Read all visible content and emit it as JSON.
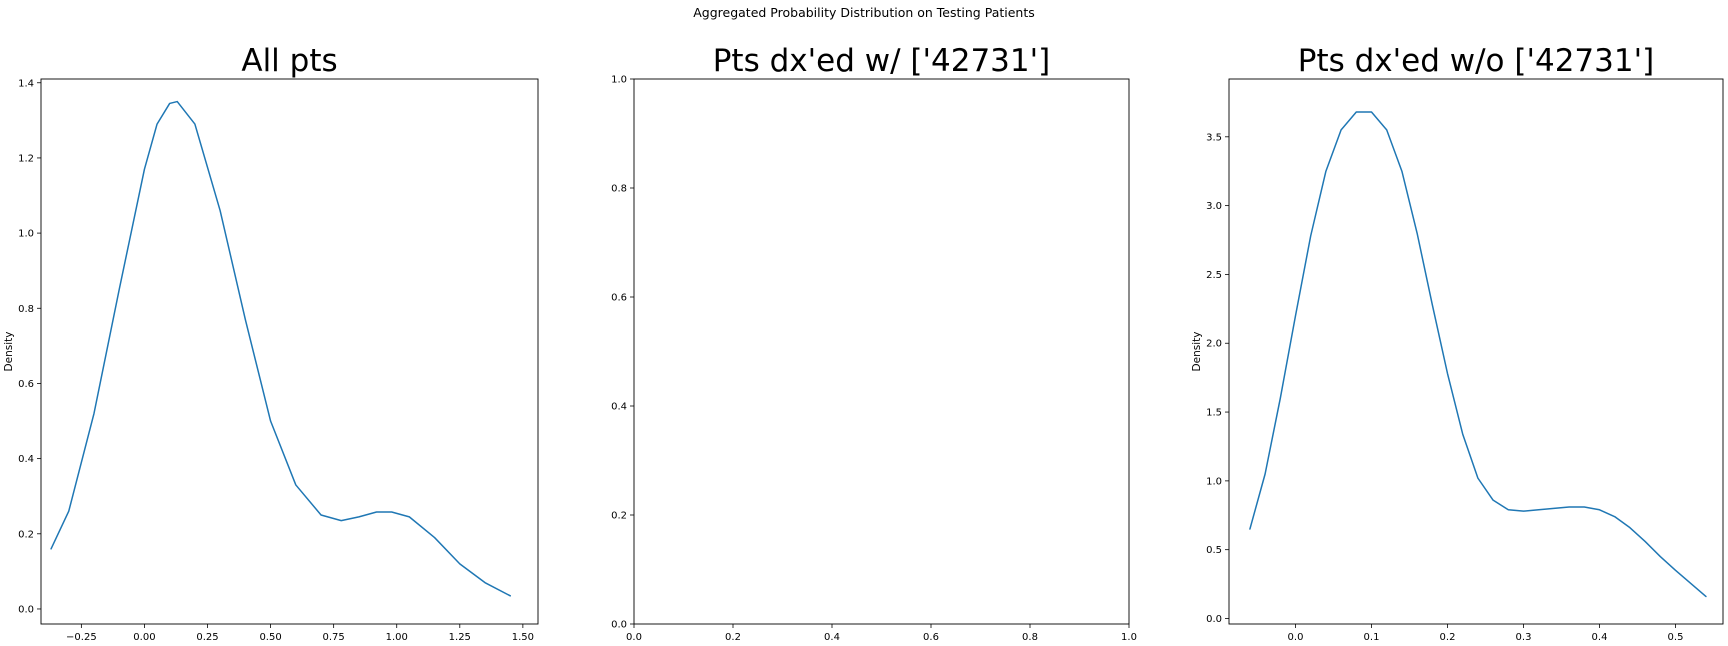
{
  "figure": {
    "suptitle": "Aggregated Probability Distribution on Testing Patients"
  },
  "chart_data": [
    {
      "type": "line",
      "title": "All pts",
      "xlabel": "",
      "ylabel": "Density",
      "xlim": [
        -0.41,
        1.56
      ],
      "ylim": [
        -0.04,
        1.41
      ],
      "xticks": [
        -0.25,
        0.0,
        0.25,
        0.5,
        0.75,
        1.0,
        1.25,
        1.5
      ],
      "xtick_labels": [
        "−0.25",
        "0.00",
        "0.25",
        "0.50",
        "0.75",
        "1.00",
        "1.25",
        "1.50"
      ],
      "yticks": [
        0.0,
        0.2,
        0.4,
        0.6,
        0.8,
        1.0,
        1.2,
        1.4
      ],
      "ytick_labels": [
        "0.0",
        "0.2",
        "0.4",
        "0.6",
        "0.8",
        "1.0",
        "1.2",
        "1.4"
      ],
      "grid": false,
      "color": "#1f77b4",
      "series": [
        {
          "x": [
            -0.37,
            -0.3,
            -0.2,
            -0.1,
            0.0,
            0.05,
            0.1,
            0.13,
            0.2,
            0.3,
            0.4,
            0.5,
            0.6,
            0.7,
            0.78,
            0.85,
            0.92,
            0.98,
            1.05,
            1.15,
            1.25,
            1.35,
            1.45
          ],
          "y": [
            0.16,
            0.26,
            0.52,
            0.85,
            1.17,
            1.29,
            1.345,
            1.35,
            1.29,
            1.06,
            0.77,
            0.5,
            0.33,
            0.25,
            0.235,
            0.245,
            0.258,
            0.258,
            0.245,
            0.19,
            0.12,
            0.07,
            0.035
          ]
        }
      ]
    },
    {
      "type": "line",
      "title": "Pts dx'ed w/ ['42731']",
      "xlabel": "",
      "ylabel": "",
      "xlim": [
        0.0,
        1.0
      ],
      "ylim": [
        0.0,
        1.0
      ],
      "xticks": [
        0.0,
        0.2,
        0.4,
        0.6,
        0.8,
        1.0
      ],
      "xtick_labels": [
        "0.0",
        "0.2",
        "0.4",
        "0.6",
        "0.8",
        "1.0"
      ],
      "yticks": [
        0.0,
        0.2,
        0.4,
        0.6,
        0.8,
        1.0
      ],
      "ytick_labels": [
        "0.0",
        "0.2",
        "0.4",
        "0.6",
        "0.8",
        "1.0"
      ],
      "grid": false,
      "color": "#1f77b4",
      "series": []
    },
    {
      "type": "line",
      "title": "Pts dx'ed w/o ['42731']",
      "xlabel": "",
      "ylabel": "Density",
      "xlim": [
        -0.0875,
        0.5625
      ],
      "ylim": [
        -0.04,
        3.92
      ],
      "xticks": [
        0.0,
        0.1,
        0.2,
        0.3,
        0.4,
        0.5
      ],
      "xtick_labels": [
        "0.0",
        "0.1",
        "0.2",
        "0.3",
        "0.4",
        "0.5"
      ],
      "yticks": [
        0.0,
        0.5,
        1.0,
        1.5,
        2.0,
        2.5,
        3.0,
        3.5
      ],
      "ytick_labels": [
        "0.0",
        "0.5",
        "1.0",
        "1.5",
        "2.0",
        "2.5",
        "3.0",
        "3.5"
      ],
      "grid": false,
      "color": "#1f77b4",
      "series": [
        {
          "x": [
            -0.06,
            -0.04,
            -0.02,
            0.0,
            0.02,
            0.04,
            0.06,
            0.08,
            0.1,
            0.12,
            0.14,
            0.16,
            0.18,
            0.2,
            0.22,
            0.24,
            0.26,
            0.28,
            0.3,
            0.32,
            0.34,
            0.36,
            0.38,
            0.4,
            0.42,
            0.44,
            0.46,
            0.48,
            0.5,
            0.54
          ],
          "y": [
            0.65,
            1.05,
            1.6,
            2.2,
            2.78,
            3.25,
            3.55,
            3.68,
            3.68,
            3.55,
            3.25,
            2.8,
            2.28,
            1.78,
            1.34,
            1.02,
            0.86,
            0.79,
            0.78,
            0.79,
            0.8,
            0.81,
            0.81,
            0.79,
            0.74,
            0.66,
            0.56,
            0.45,
            0.35,
            0.16
          ]
        }
      ]
    }
  ]
}
